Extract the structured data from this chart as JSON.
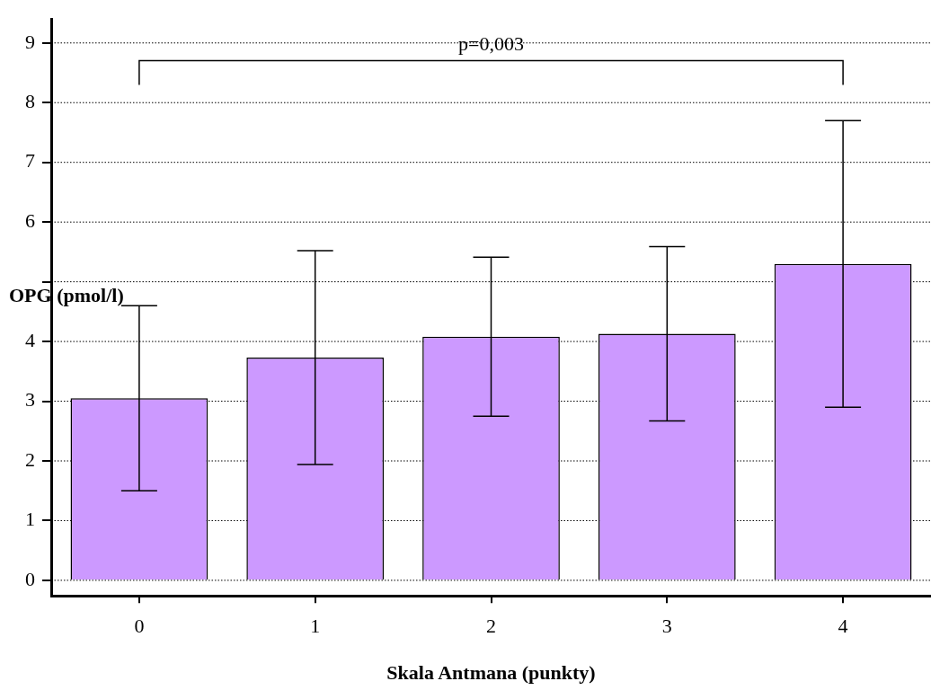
{
  "chart_data": {
    "type": "bar",
    "xlabel": "Skala Antmana (punkty)",
    "ylabel": "OPG (pmol/l)",
    "categories": [
      "0",
      "1",
      "2",
      "3",
      "4"
    ],
    "values": [
      3.05,
      3.73,
      4.08,
      4.13,
      5.3
    ],
    "errors": [
      1.55,
      1.79,
      1.33,
      1.46,
      2.4
    ],
    "color": "#cc99ff",
    "ylim": [
      -0.26,
      9.4
    ],
    "yticks": [
      0,
      1,
      2,
      3,
      4,
      {
        "value": 5,
        "label": null
      },
      6,
      7,
      8,
      9
    ],
    "grid": "y",
    "legend": false,
    "annotations": [
      "p=0,003"
    ]
  }
}
